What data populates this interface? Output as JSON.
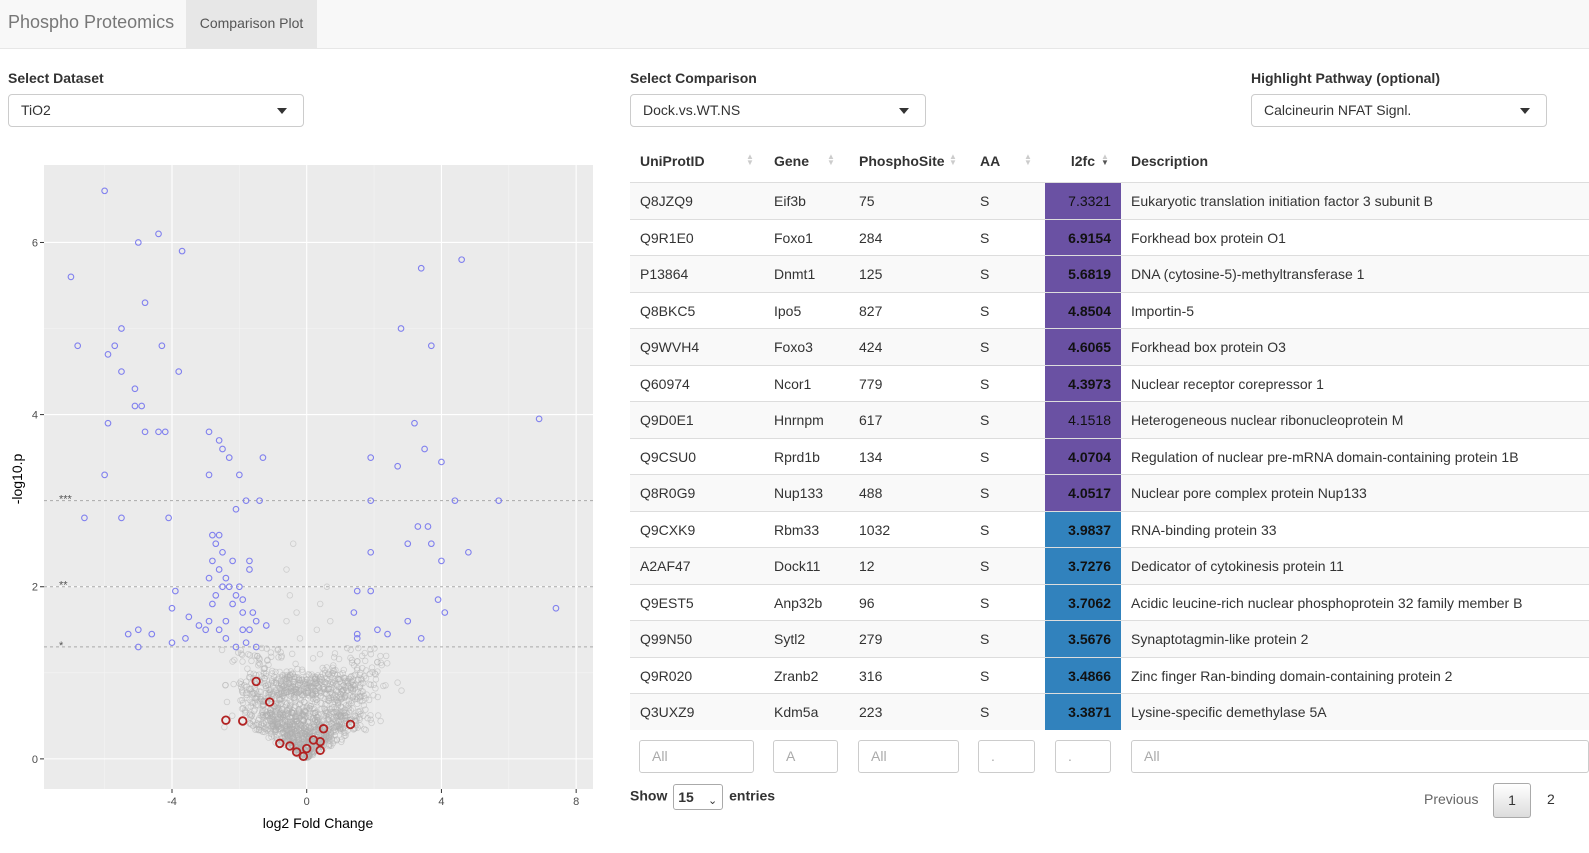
{
  "navbar": {
    "brand": "Phospho Proteomics",
    "tab": "Comparison Plot"
  },
  "controls": {
    "dataset": {
      "label": "Select Dataset",
      "value": "TiO2"
    },
    "comparison": {
      "label": "Select Comparison",
      "value": "Dock.vs.WT.NS"
    },
    "pathway": {
      "label": "Highlight Pathway (optional)",
      "value": "Calcineurin NFAT Signl."
    }
  },
  "chart_data": {
    "type": "scatter",
    "xlabel": "log2 Fold Change",
    "ylabel": "-log10.p",
    "xlim": [
      -7.8,
      8.5
    ],
    "ylim": [
      -0.35,
      6.9
    ],
    "xticks": [
      -4,
      0,
      4,
      8
    ],
    "yticks": [
      0,
      2,
      4,
      6
    ],
    "grid": true,
    "thresholds": [
      {
        "y": 1.301,
        "label": "*"
      },
      {
        "y": 2,
        "label": "**"
      },
      {
        "y": 3,
        "label": "***"
      }
    ],
    "colors": {
      "significant": "#8080ee",
      "nonsignificant": "#b0b0b0",
      "highlight": "#b22222",
      "background": "#ebebeb"
    },
    "series": [
      {
        "group": "significant",
        "points": [
          [
            -6.0,
            6.6
          ],
          [
            -4.4,
            6.1
          ],
          [
            -5.0,
            6.0
          ],
          [
            -3.7,
            5.9
          ],
          [
            -7.0,
            5.6
          ],
          [
            -4.8,
            5.3
          ],
          [
            -5.5,
            5.0
          ],
          [
            -5.7,
            4.8
          ],
          [
            -4.3,
            4.8
          ],
          [
            -6.8,
            4.8
          ],
          [
            -5.9,
            4.7
          ],
          [
            -3.8,
            4.5
          ],
          [
            -5.5,
            4.5
          ],
          [
            -5.1,
            4.3
          ],
          [
            -4.9,
            4.1
          ],
          [
            -5.1,
            4.1
          ],
          [
            -5.9,
            3.9
          ],
          [
            -4.8,
            3.8
          ],
          [
            -4.4,
            3.8
          ],
          [
            -4.2,
            3.8
          ],
          [
            -2.9,
            3.8
          ],
          [
            -2.6,
            3.7
          ],
          [
            -2.5,
            3.6
          ],
          [
            -2.3,
            3.5
          ],
          [
            -1.3,
            3.5
          ],
          [
            -2.9,
            3.3
          ],
          [
            -2.0,
            3.3
          ],
          [
            -6.0,
            3.3
          ],
          [
            -1.8,
            3.0
          ],
          [
            -1.4,
            3.0
          ],
          [
            -2.1,
            2.9
          ],
          [
            -5.5,
            2.8
          ],
          [
            -6.6,
            2.8
          ],
          [
            -4.1,
            2.8
          ],
          [
            -2.8,
            2.6
          ],
          [
            -2.6,
            2.6
          ],
          [
            -2.7,
            2.5
          ],
          [
            -2.5,
            2.4
          ],
          [
            -2.2,
            2.3
          ],
          [
            -1.7,
            2.3
          ],
          [
            -2.8,
            2.3
          ],
          [
            -2.6,
            2.2
          ],
          [
            -1.7,
            2.2
          ],
          [
            -2.9,
            2.1
          ],
          [
            -2.4,
            2.1
          ],
          [
            -2.3,
            2.0
          ],
          [
            -2.0,
            2.0
          ],
          [
            -2.5,
            2.0
          ],
          [
            -3.9,
            1.95
          ],
          [
            -2.7,
            1.9
          ],
          [
            -2.1,
            1.9
          ],
          [
            -1.9,
            1.85
          ],
          [
            -2.8,
            1.8
          ],
          [
            -2.2,
            1.8
          ],
          [
            -4.0,
            1.75
          ],
          [
            -1.9,
            1.7
          ],
          [
            -1.6,
            1.7
          ],
          [
            -3.5,
            1.65
          ],
          [
            -2.9,
            1.6
          ],
          [
            -2.4,
            1.6
          ],
          [
            -1.5,
            1.6
          ],
          [
            -1.2,
            1.55
          ],
          [
            -3.2,
            1.55
          ],
          [
            -3.0,
            1.5
          ],
          [
            -2.6,
            1.5
          ],
          [
            -1.9,
            1.5
          ],
          [
            -1.7,
            1.5
          ],
          [
            -5.0,
            1.5
          ],
          [
            -4.6,
            1.45
          ],
          [
            -5.3,
            1.45
          ],
          [
            -2.4,
            1.4
          ],
          [
            -3.6,
            1.4
          ],
          [
            -1.8,
            1.35
          ],
          [
            -4.0,
            1.35
          ],
          [
            -2.1,
            1.3
          ],
          [
            -5.0,
            1.3
          ],
          [
            -1.5,
            1.3
          ],
          [
            4.6,
            5.8
          ],
          [
            3.4,
            5.7
          ],
          [
            2.8,
            5.0
          ],
          [
            3.7,
            4.8
          ],
          [
            6.9,
            3.95
          ],
          [
            3.2,
            3.9
          ],
          [
            3.5,
            3.6
          ],
          [
            1.9,
            3.5
          ],
          [
            4.0,
            3.45
          ],
          [
            2.7,
            3.4
          ],
          [
            1.9,
            3.0
          ],
          [
            4.4,
            3.0
          ],
          [
            5.7,
            3.0
          ],
          [
            3.3,
            2.7
          ],
          [
            3.6,
            2.7
          ],
          [
            3.0,
            2.5
          ],
          [
            3.7,
            2.5
          ],
          [
            4.8,
            2.4
          ],
          [
            1.9,
            2.4
          ],
          [
            4.0,
            2.3
          ],
          [
            1.5,
            1.95
          ],
          [
            1.9,
            1.95
          ],
          [
            3.9,
            1.85
          ],
          [
            7.4,
            1.75
          ],
          [
            1.4,
            1.7
          ],
          [
            4.1,
            1.7
          ],
          [
            3.0,
            1.6
          ],
          [
            2.1,
            1.5
          ],
          [
            2.4,
            1.45
          ],
          [
            1.5,
            1.45
          ],
          [
            3.4,
            1.4
          ],
          [
            1.5,
            1.4
          ]
        ]
      },
      {
        "group": "highlight",
        "points": [
          [
            -1.5,
            0.9
          ],
          [
            -1.1,
            0.66
          ],
          [
            -2.4,
            0.45
          ],
          [
            -1.9,
            0.44
          ],
          [
            -0.8,
            0.18
          ],
          [
            -0.5,
            0.15
          ],
          [
            -0.3,
            0.08
          ],
          [
            -0.1,
            0.03
          ],
          [
            0.0,
            0.12
          ],
          [
            0.2,
            0.22
          ],
          [
            0.4,
            0.2
          ],
          [
            0.5,
            0.35
          ],
          [
            0.4,
            0.1
          ],
          [
            1.3,
            0.4
          ]
        ]
      }
    ]
  },
  "table": {
    "columns": [
      "UniProtID",
      "Gene",
      "PhosphoSite",
      "AA",
      "l2fc",
      "Description"
    ],
    "rows": [
      {
        "id": "Q8JZQ9",
        "gene": "Eif3b",
        "site": "75",
        "aa": "S",
        "l2fc": "7.3321",
        "bold": false,
        "desc": "Eukaryotic translation initiation factor 3 subunit B",
        "bg": "#6a51a3"
      },
      {
        "id": "Q9R1E0",
        "gene": "Foxo1",
        "site": "284",
        "aa": "S",
        "l2fc": "6.9154",
        "bold": true,
        "desc": "Forkhead box protein O1",
        "bg": "#6a51a3"
      },
      {
        "id": "P13864",
        "gene": "Dnmt1",
        "site": "125",
        "aa": "S",
        "l2fc": "5.6819",
        "bold": true,
        "desc": "DNA (cytosine-5)-methyltransferase 1",
        "bg": "#6a51a3"
      },
      {
        "id": "Q8BKC5",
        "gene": "Ipo5",
        "site": "827",
        "aa": "S",
        "l2fc": "4.8504",
        "bold": true,
        "desc": "Importin-5",
        "bg": "#6a51a3"
      },
      {
        "id": "Q9WVH4",
        "gene": "Foxo3",
        "site": "424",
        "aa": "S",
        "l2fc": "4.6065",
        "bold": true,
        "desc": "Forkhead box protein O3",
        "bg": "#6a51a3"
      },
      {
        "id": "Q60974",
        "gene": "Ncor1",
        "site": "779",
        "aa": "S",
        "l2fc": "4.3973",
        "bold": true,
        "desc": "Nuclear receptor corepressor 1",
        "bg": "#6a51a3"
      },
      {
        "id": "Q9D0E1",
        "gene": "Hnrnpm",
        "site": "617",
        "aa": "S",
        "l2fc": "4.1518",
        "bold": false,
        "desc": "Heterogeneous nuclear ribonucleoprotein M",
        "bg": "#6a51a3"
      },
      {
        "id": "Q9CSU0",
        "gene": "Rprd1b",
        "site": "134",
        "aa": "S",
        "l2fc": "4.0704",
        "bold": true,
        "desc": "Regulation of nuclear pre-mRNA domain-containing protein 1B",
        "bg": "#6a51a3"
      },
      {
        "id": "Q8R0G9",
        "gene": "Nup133",
        "site": "488",
        "aa": "S",
        "l2fc": "4.0517",
        "bold": true,
        "desc": "Nuclear pore complex protein Nup133",
        "bg": "#6a51a3"
      },
      {
        "id": "Q9CXK9",
        "gene": "Rbm33",
        "site": "1032",
        "aa": "S",
        "l2fc": "3.9837",
        "bold": true,
        "desc": "RNA-binding protein 33",
        "bg": "#3182bd"
      },
      {
        "id": "A2AF47",
        "gene": "Dock11",
        "site": "12",
        "aa": "S",
        "l2fc": "3.7276",
        "bold": true,
        "desc": "Dedicator of cytokinesis protein 11",
        "bg": "#3182bd"
      },
      {
        "id": "Q9EST5",
        "gene": "Anp32b",
        "site": "96",
        "aa": "S",
        "l2fc": "3.7062",
        "bold": true,
        "desc": "Acidic leucine-rich nuclear phosphoprotein 32 family member B",
        "bg": "#3182bd"
      },
      {
        "id": "Q99N50",
        "gene": "Sytl2",
        "site": "279",
        "aa": "S",
        "l2fc": "3.5676",
        "bold": true,
        "desc": "Synaptotagmin-like protein 2",
        "bg": "#3182bd"
      },
      {
        "id": "Q9R020",
        "gene": "Zranb2",
        "site": "316",
        "aa": "S",
        "l2fc": "3.4866",
        "bold": true,
        "desc": "Zinc finger Ran-binding domain-containing protein 2",
        "bg": "#3182bd"
      },
      {
        "id": "Q3UXZ9",
        "gene": "Kdm5a",
        "site": "223",
        "aa": "S",
        "l2fc": "3.3871",
        "bold": true,
        "desc": "Lysine-specific demethylase 5A",
        "bg": "#3182bd"
      }
    ],
    "filters": [
      "All",
      "A",
      "All",
      ".",
      ".",
      "All"
    ],
    "show_label": "Show",
    "entries_value": "15",
    "entries_label": "entries",
    "pager": {
      "prev": "Previous",
      "current": "1",
      "next": "2"
    }
  }
}
